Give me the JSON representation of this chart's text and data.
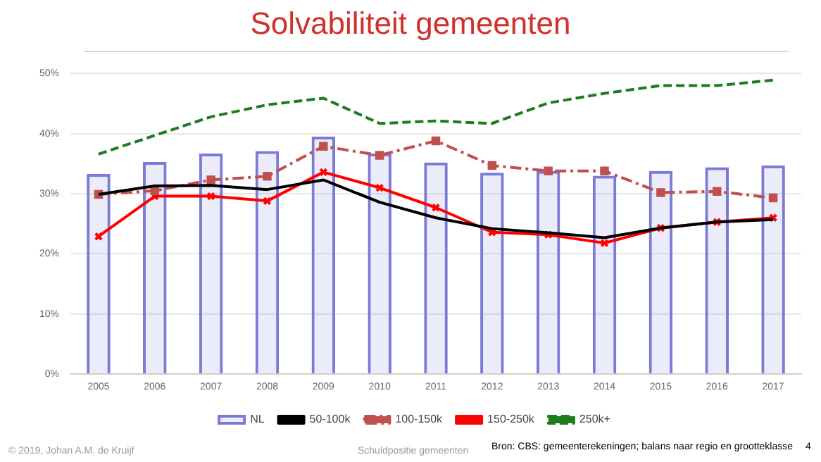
{
  "chart_data": {
    "type": "line",
    "title": "Solvabiliteit gemeenten",
    "categories": [
      "2005",
      "2006",
      "2007",
      "2008",
      "2009",
      "2010",
      "2011",
      "2012",
      "2013",
      "2014",
      "2015",
      "2016",
      "2017"
    ],
    "series": [
      {
        "name": "NL",
        "type": "bar",
        "color": "#7b7bd6",
        "values": [
          33.3,
          35.3,
          36.7,
          37.1,
          39.5,
          36.7,
          35.2,
          33.5,
          33.8,
          33.0,
          33.8,
          34.4,
          34.7
        ]
      },
      {
        "name": "50-100k",
        "color": "#000000",
        "line_style": "solid",
        "marker": "none",
        "values": [
          29.9,
          31.3,
          31.4,
          30.7,
          32.3,
          28.6,
          26.0,
          24.2,
          23.5,
          22.7,
          24.3,
          25.3,
          25.7
        ]
      },
      {
        "name": "100-150k",
        "color": "#c0504d",
        "line_style": "dashdot",
        "marker": "square",
        "values": [
          29.9,
          30.5,
          32.3,
          32.9,
          37.9,
          36.4,
          38.8,
          34.7,
          33.8,
          33.8,
          30.2,
          30.4,
          29.3
        ]
      },
      {
        "name": "150-250k",
        "color": "#ff0000",
        "line_style": "solid",
        "marker": "cross",
        "values": [
          22.9,
          29.6,
          29.6,
          28.8,
          33.6,
          31.0,
          27.7,
          23.6,
          23.2,
          21.8,
          24.3,
          25.3,
          26.0
        ]
      },
      {
        "name": "250k+",
        "color": "#1e7b1e",
        "line_style": "dashed",
        "marker": "none",
        "values": [
          36.6,
          39.7,
          42.8,
          44.8,
          45.9,
          41.7,
          42.1,
          41.7,
          45.1,
          46.7,
          48.0,
          48.0,
          48.9
        ]
      }
    ],
    "ylim": [
      0,
      50
    ],
    "yticks": [
      {
        "value": 0,
        "label": "0%"
      },
      {
        "value": 10,
        "label": "10%"
      },
      {
        "value": 20,
        "label": "20%"
      },
      {
        "value": 30,
        "label": "30%"
      },
      {
        "value": 40,
        "label": "40%"
      },
      {
        "value": 50,
        "label": "50%"
      }
    ],
    "grid": "y",
    "legend": "bottom",
    "annotations": [
      "© 2019, Johan A.M.  de Kruijf",
      "Schuldpositie gemeenten",
      "Bron: CBS: gemeenterekeningen; balans naar regio en grootteklasse",
      "4"
    ]
  }
}
